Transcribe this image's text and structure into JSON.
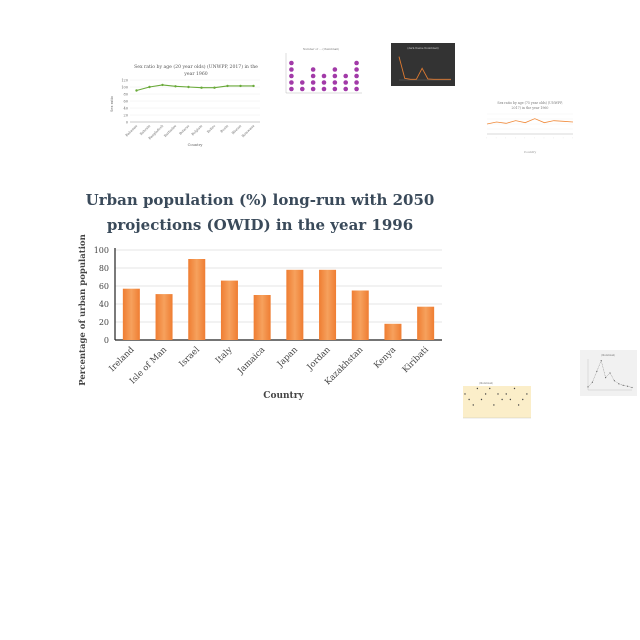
{
  "chart_data": [
    {
      "type": "bar",
      "title": "Urban population (%) long-run with 2050 projections (OWID) in the year 1996",
      "title_lines": [
        "Urban population (%) long-run with 2050",
        "projections (OWID) in the year 1996"
      ],
      "xlabel": "Country",
      "ylabel": "Percentage of urban population",
      "categories": [
        "Ireland",
        "Isle of Man",
        "Israel",
        "Italy",
        "Jamaica",
        "Japan",
        "Jordan",
        "Kazakhstan",
        "Kenya",
        "Kiribati"
      ],
      "values": [
        57,
        51,
        90,
        66,
        50,
        78,
        78,
        55,
        18,
        37
      ],
      "yticks": [
        0,
        20,
        40,
        60,
        80,
        100
      ],
      "ylim": [
        0,
        100
      ],
      "bar_color": "#ef7d32",
      "bar_color_light": "#f6a15d",
      "grid": true,
      "legend": "none"
    },
    {
      "type": "line",
      "title": "Sex ratio by age (20 year olds) (UNWPP, 2017) in the year 1960",
      "xlabel": "Country",
      "ylabel": "Sex ratio",
      "categories": [
        "Bahamas",
        "Bahrain",
        "Bangladesh",
        "Barbados",
        "Belarus",
        "Belgium",
        "Belize",
        "Benin",
        "Bhutan",
        "Botswana"
      ],
      "values": [
        90,
        100,
        106,
        102,
        100,
        98,
        98,
        103,
        103,
        103
      ],
      "yticks": [
        0,
        20,
        40,
        60,
        80,
        100,
        120
      ],
      "ylim": [
        0,
        120
      ],
      "line_color": "#6aaa3a"
    },
    {
      "type": "scatter",
      "title": "Number of ... (thumbnail text not legible)",
      "marker_color": "#a23aa8",
      "values": [
        5,
        2,
        4,
        3,
        4,
        3,
        5
      ]
    },
    {
      "type": "line",
      "title": "(dark-theme thumbnail, text not legible)",
      "line_color": "#e07a30",
      "values": [
        70,
        5,
        2,
        2,
        35,
        3,
        2,
        2,
        2,
        2
      ]
    },
    {
      "type": "line",
      "title": "Sex ratio by age (75 year olds) (UNWPP, 2017) in the year 1960",
      "xlabel": "Country",
      "line_color": "#f08a3a",
      "values": [
        55,
        58,
        56,
        60,
        57,
        63,
        57,
        60,
        59,
        58
      ]
    },
    {
      "type": "scatter",
      "title": "(thumbnail text not legible)",
      "background": "#fbeec9",
      "marker_color": "#444444",
      "values": [
        4,
        3,
        2,
        5,
        3,
        4,
        5,
        2,
        4,
        3,
        4,
        3,
        5,
        2,
        3,
        4
      ]
    },
    {
      "type": "line",
      "title": "(thumbnail text not legible)",
      "line_color": "#8a8a8a",
      "values": [
        10,
        25,
        60,
        95,
        40,
        55,
        30,
        20,
        15,
        12,
        8
      ]
    }
  ]
}
